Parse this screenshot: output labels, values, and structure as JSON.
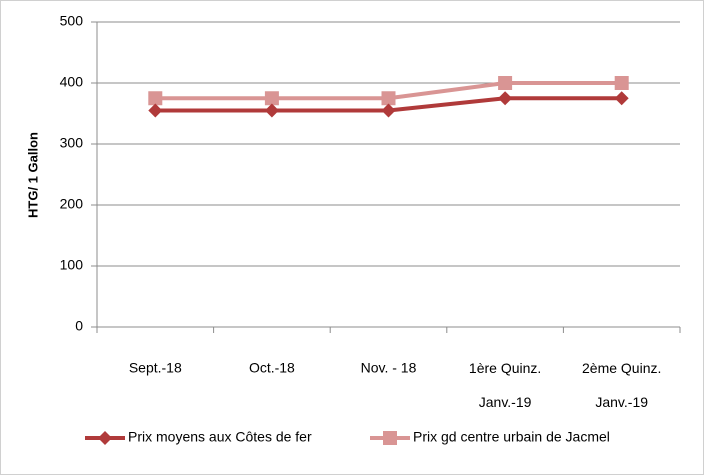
{
  "chart_data": {
    "type": "line",
    "y_label": "HTG/ 1 Gallon",
    "categories": [
      "Sept.-18",
      "Oct.-18",
      "Nov. - 18",
      "1ère  Quinz.\nJanv.-19",
      "2ème  Quinz.\nJanv.-19"
    ],
    "series": [
      {
        "name": "Prix moyens aux Côtes de fer",
        "color": "#b03a3a",
        "marker": "diamond",
        "values": [
          355,
          355,
          355,
          375,
          375
        ]
      },
      {
        "name": "Prix gd centre urbain de Jacmel",
        "color": "#d99594",
        "marker": "square",
        "values": [
          375,
          375,
          375,
          400,
          400
        ]
      }
    ],
    "ylim": [
      0,
      500
    ],
    "yticks": [
      0,
      100,
      200,
      300,
      400,
      500
    ],
    "grid": true,
    "legend": "bottom"
  }
}
